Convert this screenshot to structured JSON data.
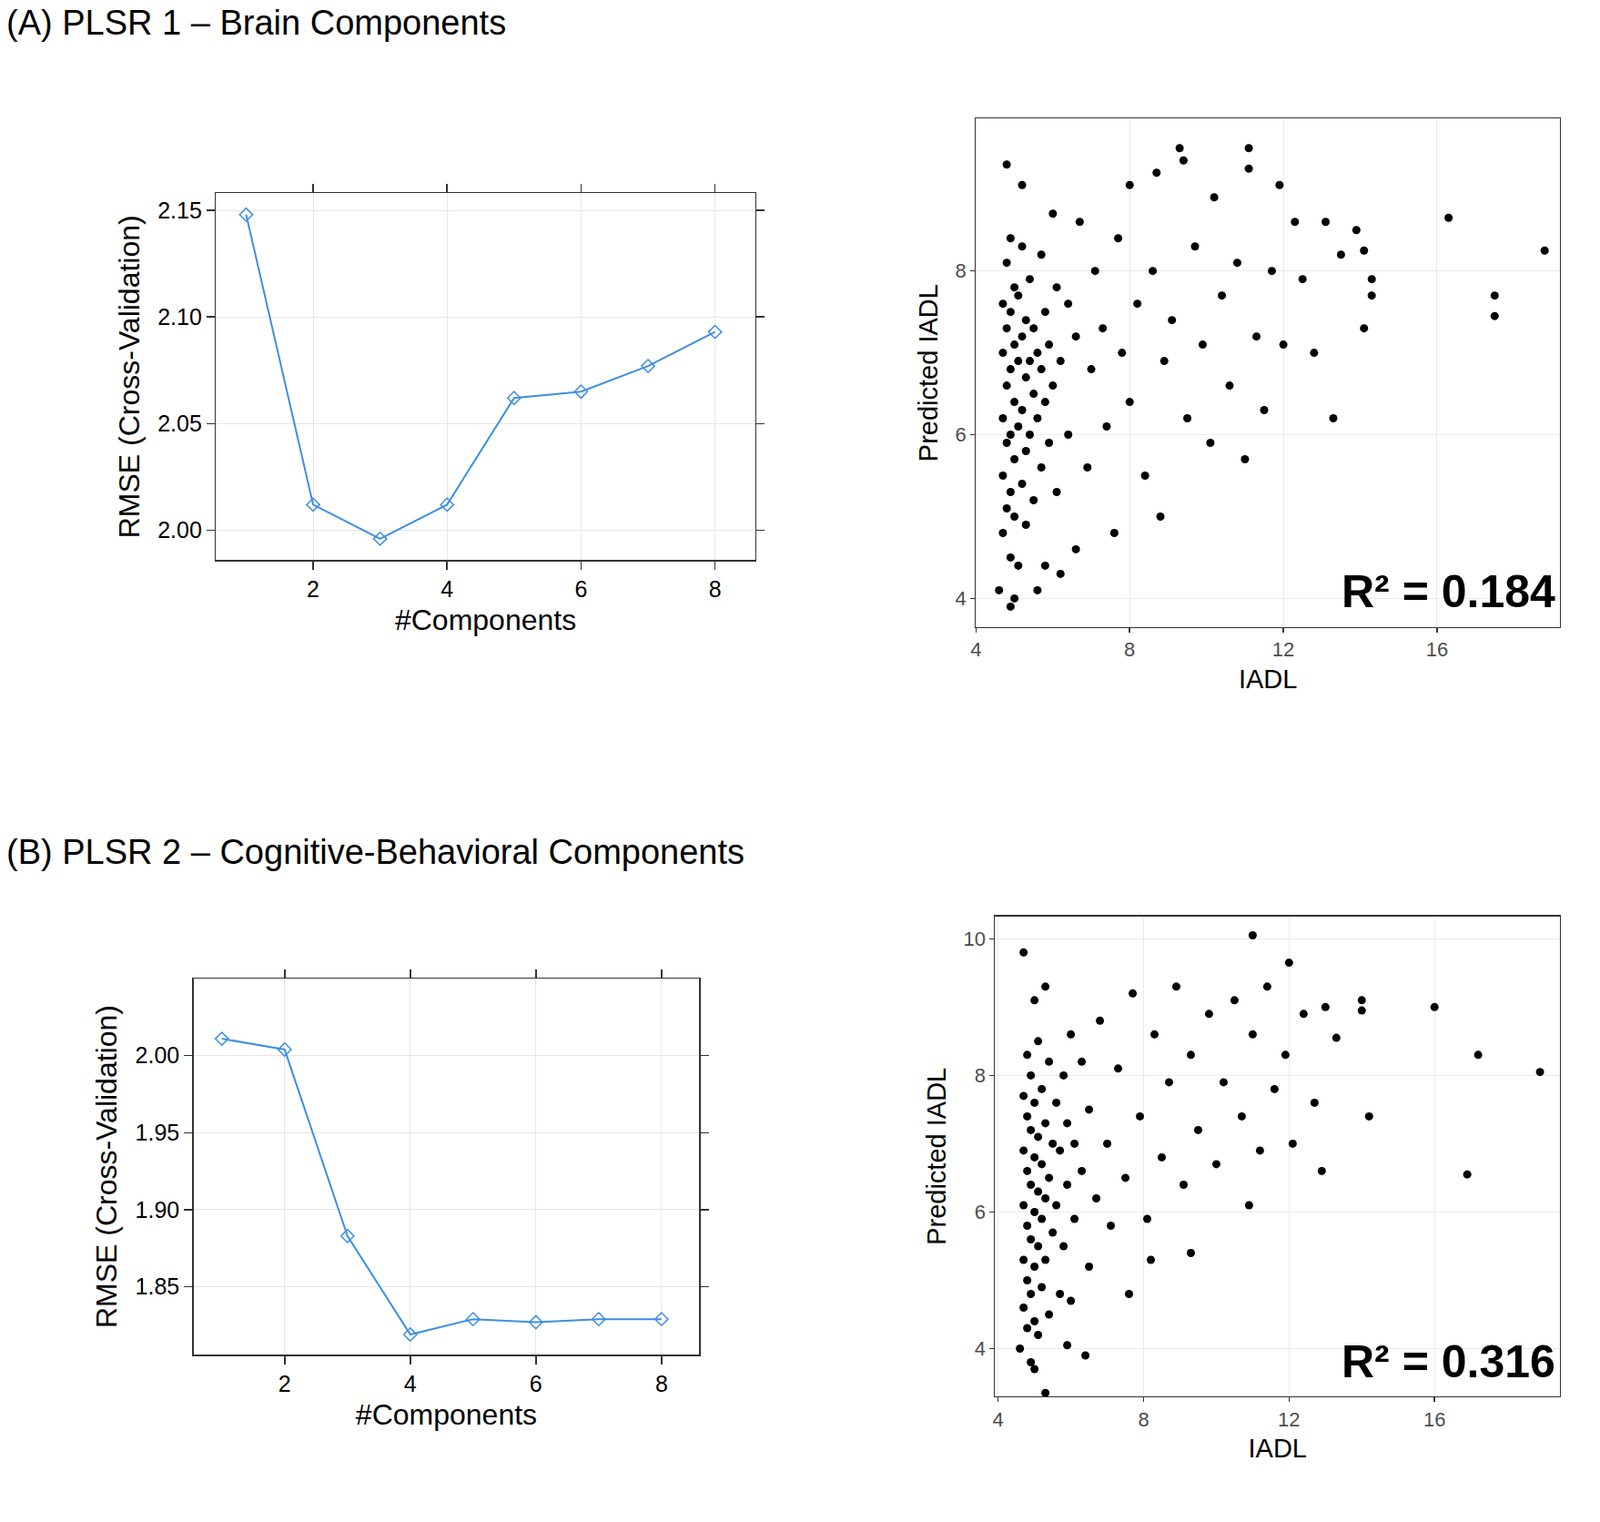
{
  "chart_data": [
    {
      "type": "line",
      "title": "(A) PLSR 1 – Brain Components",
      "x": [
        1,
        2,
        3,
        4,
        5,
        6,
        7,
        8
      ],
      "values": [
        2.148,
        2.012,
        1.996,
        2.012,
        2.062,
        2.065,
        2.077,
        2.093
      ],
      "color": "#3d8fe0",
      "marker": "diamond-open",
      "line_style": "solid",
      "xlabel": "#Components",
      "ylabel": "RMSE (Cross-Validation)",
      "xlim": [
        0.55,
        8.6
      ],
      "xticks": [
        2,
        4,
        6,
        8
      ],
      "ylim": [
        1.986,
        2.158
      ],
      "yticks": [
        {
          "value": 2,
          "label": "2.00"
        },
        {
          "value": 2.05,
          "label": "2.05"
        },
        {
          "value": 2.1,
          "label": "2.10"
        },
        {
          "value": 2.15,
          "label": "2.15"
        }
      ],
      "grid": true
    },
    {
      "type": "scatter",
      "x": [
        4.6,
        4.7,
        4.7,
        4.7,
        4.7,
        4.7,
        4.8,
        4.8,
        4.8,
        4.8,
        4.8,
        4.9,
        4.9,
        4.9,
        4.9,
        4.9,
        4.9,
        5.0,
        5.0,
        5.0,
        5.0,
        5.0,
        5.1,
        5.1,
        5.1,
        5.1,
        5.2,
        5.2,
        5.2,
        5.2,
        5.3,
        5.3,
        5.3,
        5.3,
        5.4,
        5.4,
        5.4,
        5.5,
        5.5,
        5.5,
        5.6,
        5.6,
        5.6,
        5.7,
        5.7,
        5.7,
        5.8,
        5.8,
        5.8,
        5.9,
        5.9,
        6.0,
        6.0,
        6.1,
        6.1,
        6.2,
        6.2,
        6.4,
        6.4,
        6.6,
        6.6,
        6.7,
        6.9,
        7.0,
        7.1,
        7.3,
        7.4,
        7.6,
        7.7,
        7.8,
        8.0,
        8.0,
        8.2,
        8.4,
        8.6,
        8.7,
        8.8,
        8.9,
        9.1,
        9.3,
        9.4,
        9.5,
        9.7,
        9.9,
        10.1,
        10.2,
        10.4,
        10.6,
        10.8,
        11.0,
        11.1,
        11.1,
        11.3,
        11.5,
        11.7,
        11.9,
        12.0,
        12.3,
        12.5,
        12.8,
        13.1,
        13.3,
        13.5,
        13.9,
        14.1,
        14.1,
        14.3,
        14.3,
        16.3,
        17.5,
        17.5,
        18.8,
        4.8,
        5.2,
        4.9,
        5.0
      ],
      "values": [
        4.1,
        4.8,
        5.5,
        6.2,
        7.0,
        7.6,
        5.1,
        5.9,
        6.6,
        7.3,
        8.1,
        4.5,
        5.3,
        6.0,
        6.8,
        7.5,
        8.4,
        5.0,
        5.7,
        6.4,
        7.1,
        7.8,
        4.4,
        6.1,
        6.9,
        7.7,
        5.4,
        6.3,
        7.2,
        8.3,
        4.9,
        5.8,
        6.7,
        7.4,
        6.0,
        6.9,
        7.9,
        5.2,
        6.5,
        7.3,
        4.1,
        6.2,
        7.0,
        5.6,
        6.8,
        8.2,
        4.4,
        6.4,
        7.5,
        5.9,
        7.1,
        6.6,
        8.7,
        5.3,
        7.8,
        4.3,
        6.9,
        6.0,
        7.6,
        4.6,
        7.2,
        8.6,
        5.6,
        6.8,
        8.0,
        7.3,
        6.1,
        4.8,
        8.4,
        7.0,
        6.4,
        9.05,
        7.6,
        5.5,
        8.0,
        9.2,
        5.0,
        6.9,
        7.4,
        9.5,
        9.35,
        6.2,
        8.3,
        7.1,
        5.9,
        8.9,
        7.7,
        6.6,
        8.1,
        5.7,
        9.5,
        9.25,
        7.2,
        6.3,
        8.0,
        9.05,
        7.1,
        8.6,
        7.9,
        7.0,
        8.6,
        6.2,
        8.2,
        8.5,
        7.3,
        8.25,
        7.7,
        7.9,
        8.65,
        7.45,
        7.7,
        8.25,
        9.3,
        9.05,
        3.9,
        4.0
      ],
      "color": "#000000",
      "marker": "circle",
      "xlabel": "IADL",
      "ylabel": "Predicted IADL",
      "xlim": [
        4.0,
        19.2
      ],
      "xticks": [
        4,
        8,
        12,
        16
      ],
      "ylim": [
        3.65,
        9.86
      ],
      "yticks": [
        4,
        6,
        8
      ],
      "grid": true,
      "annotations": [
        "R² = 0.184"
      ]
    },
    {
      "type": "line",
      "title": "(B) PLSR 2 – Cognitive-Behavioral Components",
      "x": [
        1,
        2,
        3,
        4,
        5,
        6,
        7,
        8
      ],
      "values": [
        2.011,
        2.004,
        1.883,
        1.819,
        1.829,
        1.827,
        1.829,
        1.829
      ],
      "color": "#3d8fe0",
      "marker": "diamond-open",
      "line_style": "solid",
      "xlabel": "#Components",
      "ylabel": "RMSE (Cross-Validation)",
      "xlim": [
        0.55,
        8.6
      ],
      "xticks": [
        2,
        4,
        6,
        8
      ],
      "ylim": [
        1.806,
        2.05
      ],
      "yticks": [
        {
          "value": 1.85,
          "label": "1.85"
        },
        {
          "value": 1.9,
          "label": "1.90"
        },
        {
          "value": 1.95,
          "label": "1.95"
        },
        {
          "value": 2,
          "label": "2.00"
        }
      ],
      "grid": true
    },
    {
      "type": "scatter",
      "x": [
        4.6,
        4.7,
        4.7,
        4.7,
        4.7,
        4.7,
        4.8,
        4.8,
        4.8,
        4.8,
        4.8,
        4.8,
        4.9,
        4.9,
        4.9,
        4.9,
        4.9,
        4.9,
        5.0,
        5.0,
        5.0,
        5.0,
        5.0,
        5.1,
        5.1,
        5.1,
        5.1,
        5.1,
        5.2,
        5.2,
        5.2,
        5.2,
        5.3,
        5.3,
        5.3,
        5.4,
        5.4,
        5.4,
        5.5,
        5.5,
        5.6,
        5.6,
        5.7,
        5.7,
        5.8,
        5.8,
        5.9,
        5.9,
        6.0,
        6.0,
        6.1,
        6.1,
        6.3,
        6.3,
        6.5,
        6.5,
        6.7,
        6.8,
        7.0,
        7.1,
        7.3,
        7.5,
        7.7,
        7.9,
        8.1,
        8.3,
        8.5,
        8.7,
        8.9,
        9.1,
        9.3,
        9.5,
        9.8,
        10.0,
        10.2,
        10.5,
        10.7,
        11.0,
        11.2,
        11.4,
        11.6,
        11.9,
        12.1,
        12.4,
        12.7,
        13.0,
        13.3,
        12.0,
        11.0,
        14.0,
        14.0,
        14.2,
        16.0,
        17.2,
        18.9,
        16.9,
        12.9,
        10.9,
        9.3,
        8.2,
        7.6,
        6.4,
        5.3,
        5.0,
        5.9,
        4.7,
        5.3,
        5.0
      ],
      "values": [
        4.0,
        4.6,
        5.3,
        6.1,
        6.9,
        7.7,
        4.3,
        5.0,
        5.8,
        6.6,
        7.4,
        8.3,
        3.8,
        4.8,
        5.6,
        6.4,
        7.2,
        8.0,
        4.4,
        5.2,
        6.0,
        6.8,
        7.6,
        4.2,
        5.5,
        6.3,
        7.1,
        8.5,
        4.9,
        5.9,
        6.7,
        7.8,
        5.3,
        6.2,
        7.3,
        4.5,
        6.5,
        8.2,
        5.7,
        7.0,
        6.1,
        7.6,
        4.8,
        6.9,
        5.5,
        8.0,
        6.4,
        7.3,
        4.7,
        8.6,
        5.9,
        7.0,
        6.6,
        8.2,
        5.2,
        7.5,
        6.2,
        8.8,
        7.0,
        5.8,
        8.1,
        6.5,
        9.2,
        7.4,
        5.9,
        8.6,
        6.8,
        7.9,
        9.3,
        6.4,
        8.3,
        7.2,
        8.9,
        6.7,
        7.9,
        9.1,
        7.4,
        8.6,
        6.9,
        9.3,
        7.8,
        8.3,
        7.0,
        8.9,
        7.6,
        9.0,
        8.55,
        9.65,
        10.05,
        9.1,
        8.95,
        7.4,
        9.0,
        8.3,
        8.05,
        6.55,
        6.6,
        6.1,
        5.4,
        5.3,
        4.8,
        3.9,
        3.35,
        3.7,
        4.05,
        9.8,
        9.3,
        9.1
      ],
      "color": "#000000",
      "marker": "circle",
      "xlabel": "IADL",
      "ylabel": "Predicted IADL",
      "xlim": [
        3.92,
        19.45
      ],
      "xticks": [
        4,
        8,
        12,
        16
      ],
      "ylim": [
        3.3,
        10.33
      ],
      "yticks": [
        4,
        6,
        8,
        10
      ],
      "grid": true,
      "annotations": [
        "R² = 0.316"
      ]
    }
  ]
}
